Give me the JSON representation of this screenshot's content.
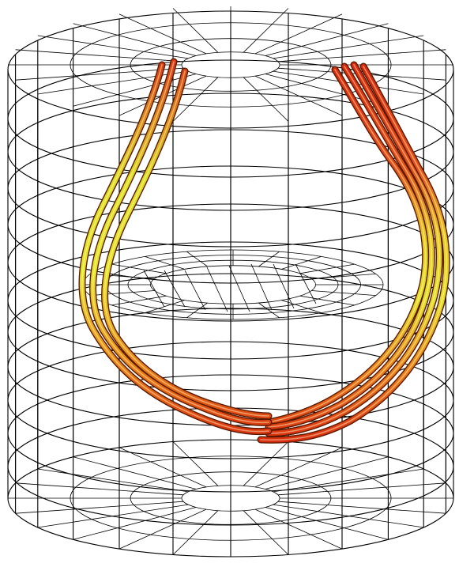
{
  "figure": {
    "kind": "3D wireframe cylinder with field-line tubes",
    "colors": {
      "background": "#ffffff",
      "wireframe": "#000000",
      "tube_yellow": "#e9e51c",
      "tube_orange": "#ee7a12",
      "tube_red": "#d92a10"
    },
    "field_line_groups": [
      {
        "name": "left-bundle",
        "count": 3
      },
      {
        "name": "right-bundle",
        "count": 4
      }
    ]
  }
}
